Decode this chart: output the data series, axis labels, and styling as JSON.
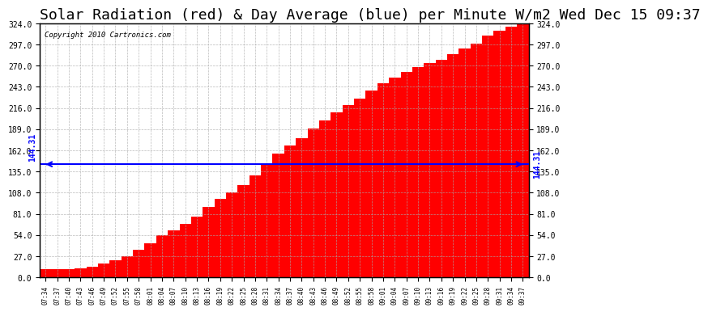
{
  "title": "Solar Radiation (red) & Day Average (blue) per Minute W/m2 Wed Dec 15 09:37",
  "copyright": "Copyright 2010 Cartronics.com",
  "avg_value": 144.31,
  "avg_label": "144.31",
  "y_min": 0.0,
  "y_max": 324.0,
  "y_ticks": [
    0.0,
    27.0,
    54.0,
    81.0,
    108.0,
    135.0,
    162.0,
    189.0,
    216.0,
    243.0,
    270.0,
    297.0,
    324.0
  ],
  "bar_color": "#FF0000",
  "avg_line_color": "#0000FF",
  "bg_color": "#FFFFFF",
  "plot_bg_color": "#FFFFFF",
  "grid_color": "#AAAAAA",
  "title_color": "#000000",
  "title_fontsize": 13,
  "x_times": [
    "07:34",
    "07:37",
    "07:40",
    "07:43",
    "07:46",
    "07:49",
    "07:52",
    "07:55",
    "07:58",
    "08:01",
    "08:04",
    "08:07",
    "08:10",
    "08:13",
    "08:16",
    "08:19",
    "08:22",
    "08:25",
    "08:28",
    "08:31",
    "08:34",
    "08:37",
    "08:40",
    "08:43",
    "08:46",
    "08:49",
    "08:52",
    "08:55",
    "08:58",
    "09:01",
    "09:04",
    "09:07",
    "09:10",
    "09:13",
    "09:16",
    "09:19",
    "09:22",
    "09:25",
    "09:28",
    "09:31",
    "09:34",
    "09:37"
  ],
  "y_values": [
    10,
    10,
    10,
    12,
    14,
    18,
    22,
    27,
    35,
    43,
    54,
    60,
    68,
    77,
    90,
    100,
    108,
    118,
    130,
    145,
    158,
    168,
    178,
    190,
    200,
    210,
    220,
    228,
    238,
    248,
    255,
    262,
    268,
    273,
    278,
    285,
    292,
    298,
    308,
    315,
    320,
    324
  ]
}
